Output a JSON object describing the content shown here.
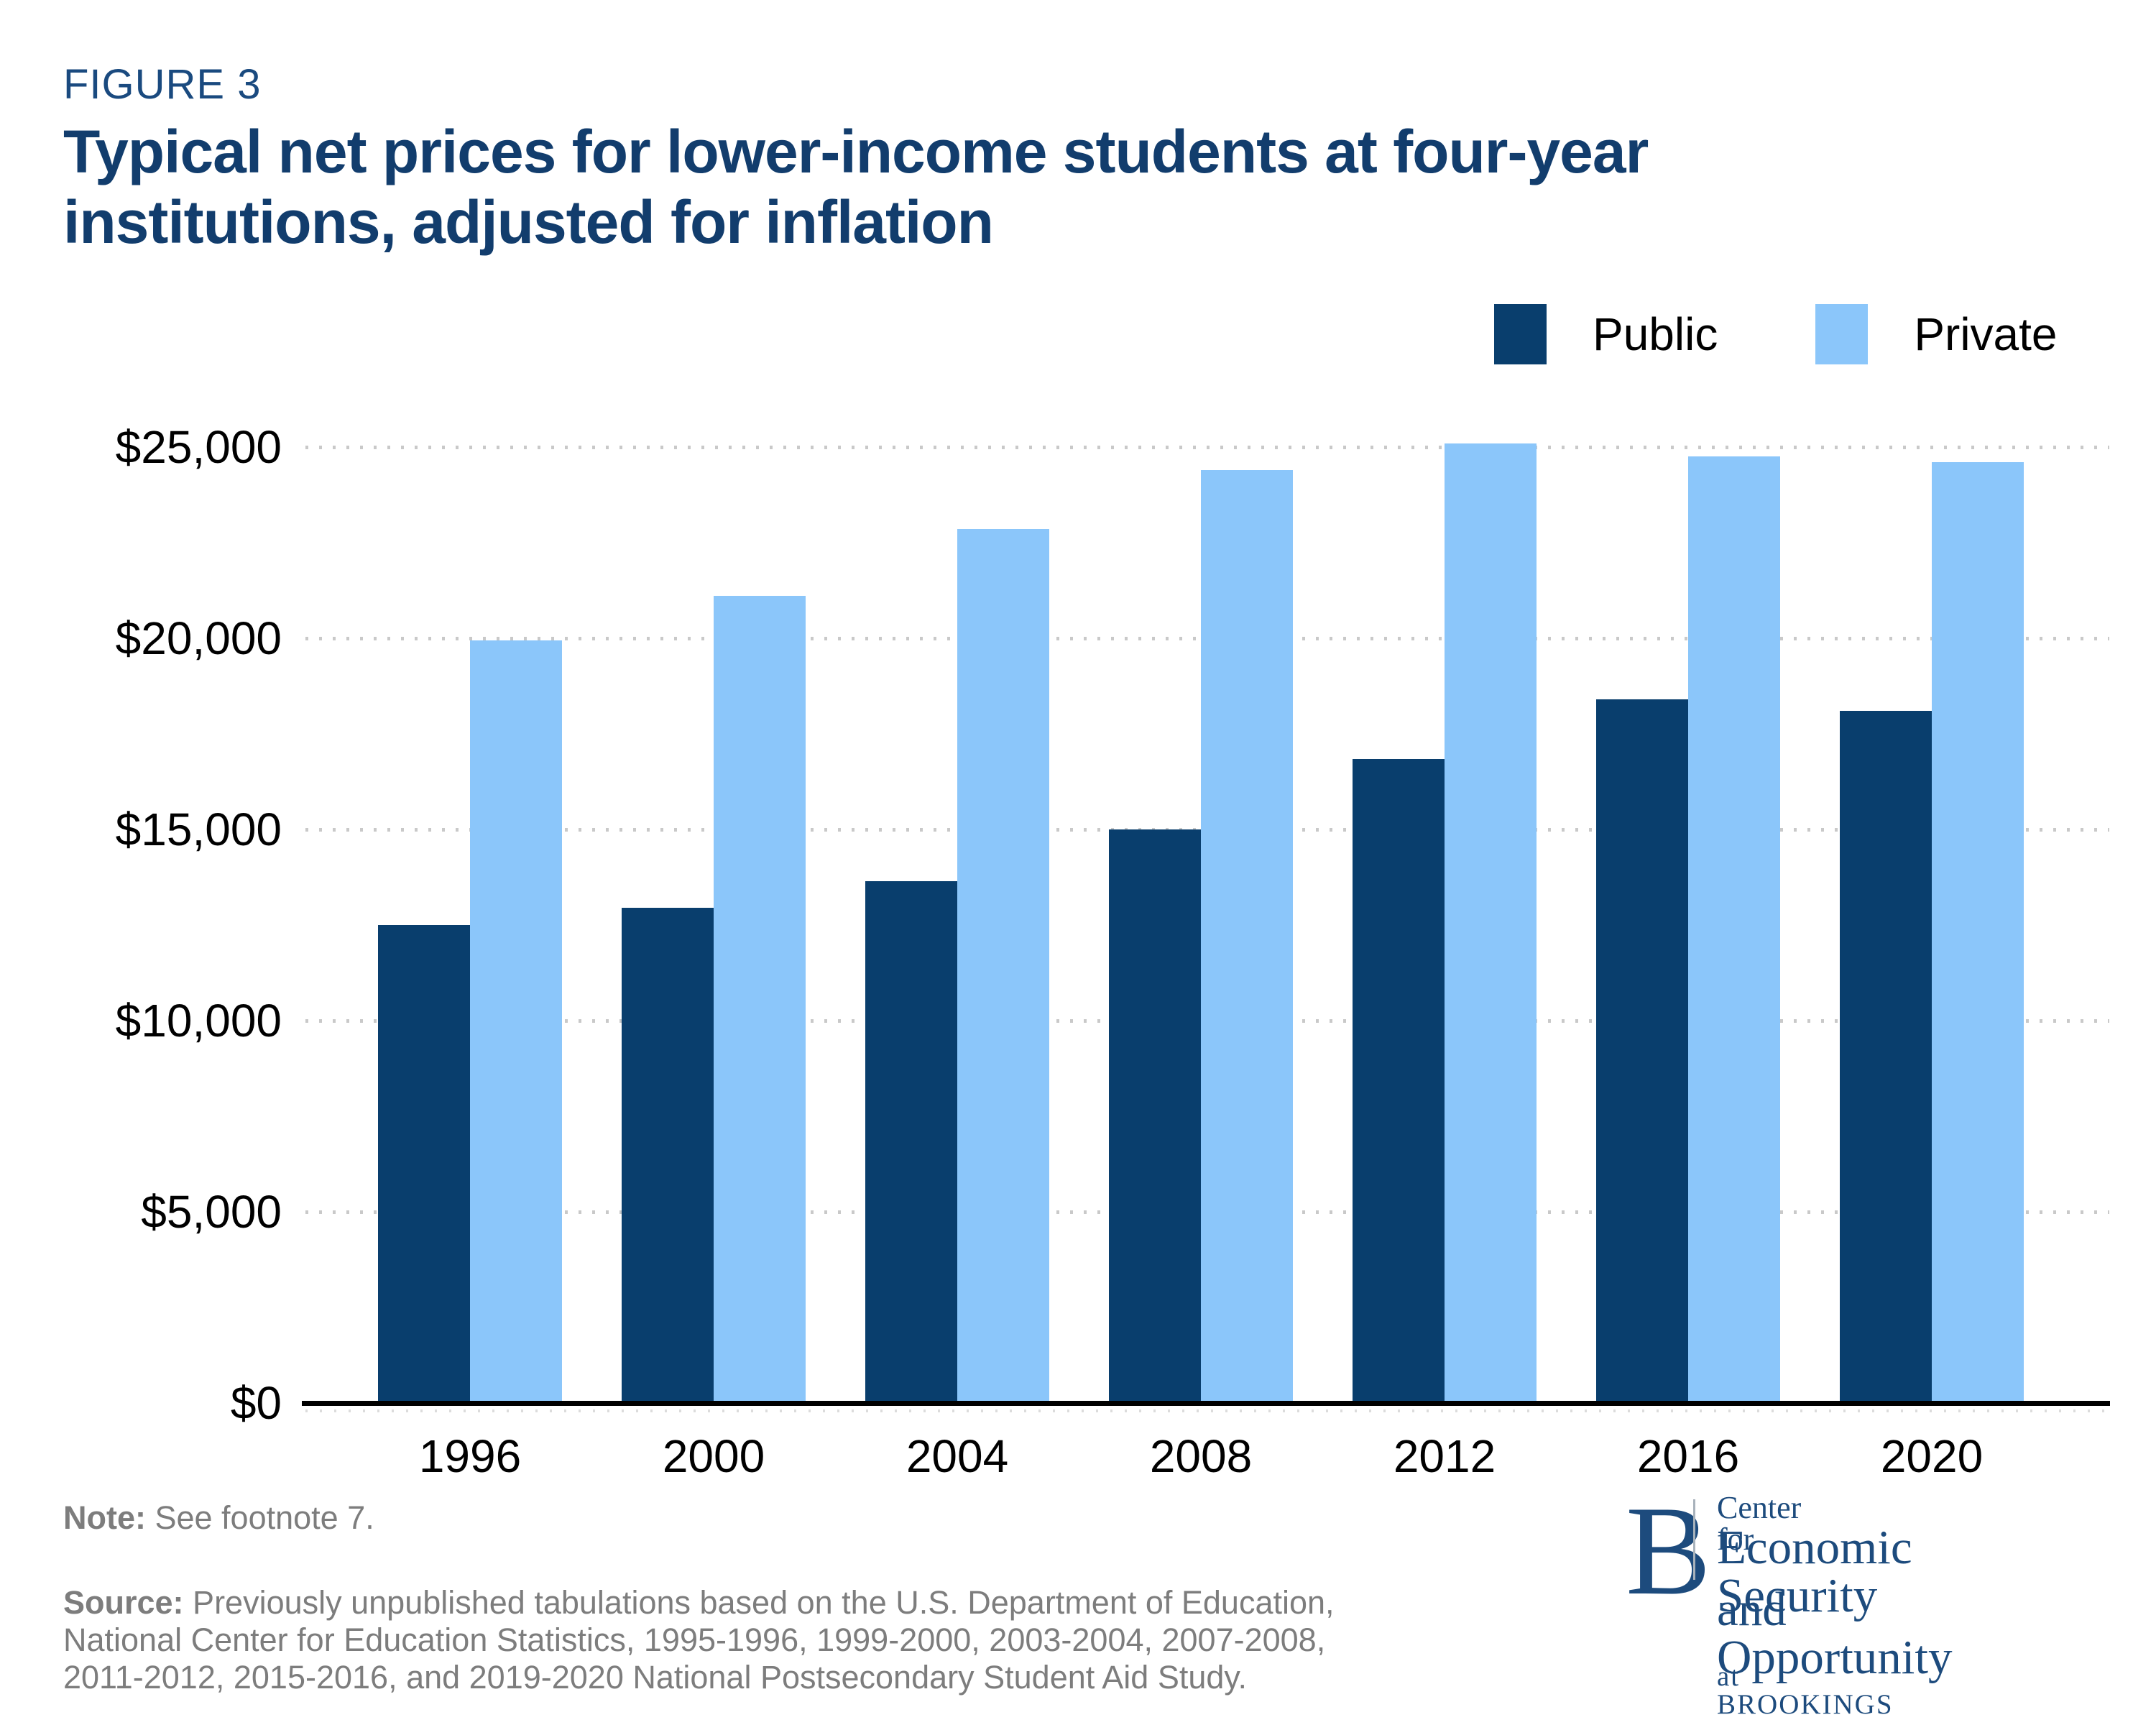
{
  "figure_label": "FIGURE 3",
  "title": "Typical net prices for lower-income students at four-year\ninstitutions, adjusted for inflation",
  "legend": {
    "items": [
      {
        "label": "Public",
        "color": "#093e6d"
      },
      {
        "label": "Private",
        "color": "#8bc6fa"
      }
    ]
  },
  "chart_data": {
    "type": "bar",
    "title": "Typical net prices for lower-income students at four-year institutions, adjusted for inflation",
    "categories": [
      "1996",
      "2000",
      "2004",
      "2008",
      "2012",
      "2016",
      "2020"
    ],
    "series": [
      {
        "name": "Public",
        "color": "#093e6d",
        "values": [
          12500,
          12950,
          13650,
          15000,
          16850,
          18400,
          18100
        ]
      },
      {
        "name": "Private",
        "color": "#8bc6fa",
        "values": [
          19950,
          21100,
          22850,
          24400,
          25100,
          24750,
          24600
        ]
      }
    ],
    "y_ticks": [
      {
        "label": "$0",
        "value": 0
      },
      {
        "label": "$5,000",
        "value": 5000
      },
      {
        "label": "$10,000",
        "value": 10000
      },
      {
        "label": "$15,000",
        "value": 15000
      },
      {
        "label": "$20,000",
        "value": 20000
      },
      {
        "label": "$25,000",
        "value": 25000
      }
    ],
    "ylim": [
      0,
      25000
    ],
    "xlabel": "",
    "ylabel": "",
    "grid": "dotted-horizontal",
    "legend_position": "top-right"
  },
  "footer": {
    "note_label": "Note:",
    "note_text": " See footnote 7.",
    "source_label": "Source:",
    "source_text": " Previously unpublished tabulations based on the U.S. Department of Education,\nNational Center for Education Statistics, 1995-1996, 1999-2000, 2003-2004, 2007-2008,\n2011-2012, 2015-2016, and 2019-2020 National Postsecondary Student Aid Study."
  },
  "logo": {
    "initial": "B",
    "line1": "Center for",
    "line2": "Economic Security",
    "line3": "and Opportunity",
    "line4": "at BROOKINGS"
  },
  "colors": {
    "public_bar": "#093e6d",
    "private_bar": "#8bc6fa",
    "title_navy": "#123d6d",
    "figure_label_navy": "#1a4a7f",
    "footer_gray": "#7d7d7d",
    "gridline_gray": "#c9c9c9",
    "axis_black": "#000000",
    "logo_navy": "#1d4b7d"
  }
}
